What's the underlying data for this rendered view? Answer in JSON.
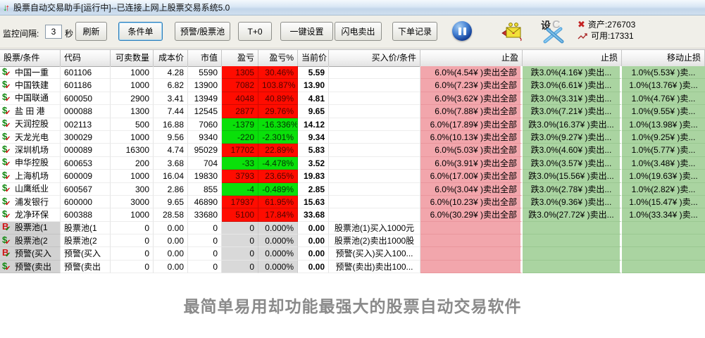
{
  "window": {
    "title": "股票自动交易助手[运行中]--已连接上网上股票交易系统5.0",
    "slogan": "最简单易用却功能最强大的股票自动交易软件"
  },
  "toolbar": {
    "interval_label": "监控间隔:",
    "interval_value": "3",
    "interval_unit": "秒",
    "buttons": [
      "刷新",
      "条件单",
      "预警/股票池",
      "T+0",
      "一键设置",
      "闪电卖出",
      "下单记录"
    ],
    "asset": "资产:276703",
    "available": "可用:17331"
  },
  "table": {
    "headers": [
      "股票/条件",
      "代码",
      "可卖数量",
      "成本价",
      "市值",
      "盈亏",
      "盈亏%",
      "当前价",
      "买入价/条件",
      "止盈",
      "止损",
      "移动止损"
    ],
    "rows": [
      {
        "icon": "sell",
        "name": "中国一重",
        "code": "601106",
        "qty": "1000",
        "cost": "4.28",
        "mktval": "5590",
        "pnl": "1305",
        "pnlpct": "30.46%",
        "price": "5.59",
        "buycond": "",
        "takeprofit": "6.0%(4.54¥ )卖出全部",
        "stoploss": "跌3.0%(4.16¥ )卖出...",
        "trailing": "1.0%(5.53¥ )卖...",
        "trend": "up",
        "special": false
      },
      {
        "icon": "sell",
        "name": "中国铁建",
        "code": "601186",
        "qty": "1000",
        "cost": "6.82",
        "mktval": "13900",
        "pnl": "7082",
        "pnlpct": "103.87%",
        "price": "13.90",
        "buycond": "",
        "takeprofit": "6.0%(7.23¥ )卖出全部",
        "stoploss": "跌3.0%(6.61¥ )卖出...",
        "trailing": "1.0%(13.76¥ )卖...",
        "trend": "up",
        "special": false
      },
      {
        "icon": "sell",
        "name": "中国联通",
        "code": "600050",
        "qty": "2900",
        "cost": "3.41",
        "mktval": "13949",
        "pnl": "4048",
        "pnlpct": "40.89%",
        "price": "4.81",
        "buycond": "",
        "takeprofit": "6.0%(3.62¥ )卖出全部",
        "stoploss": "跌3.0%(3.31¥ )卖出...",
        "trailing": "1.0%(4.76¥ )卖...",
        "trend": "up",
        "special": false
      },
      {
        "icon": "sell",
        "name": "盐 田 港",
        "code": "000088",
        "qty": "1300",
        "cost": "7.44",
        "mktval": "12545",
        "pnl": "2877",
        "pnlpct": "29.76%",
        "price": "9.65",
        "buycond": "",
        "takeprofit": "6.0%(7.88¥ )卖出全部",
        "stoploss": "跌3.0%(7.21¥ )卖出...",
        "trailing": "1.0%(9.55¥ )卖...",
        "trend": "up",
        "special": false
      },
      {
        "icon": "sell",
        "name": "天润控股",
        "code": "002113",
        "qty": "500",
        "cost": "16.88",
        "mktval": "7060",
        "pnl": "-1379",
        "pnlpct": "-16.336%",
        "price": "14.12",
        "buycond": "",
        "takeprofit": "6.0%(17.89¥ )卖出全部",
        "stoploss": "跌3.0%(16.37¥ )卖出...",
        "trailing": "1.0%(13.98¥ )卖...",
        "trend": "down",
        "special": false
      },
      {
        "icon": "sell",
        "name": "天龙光电",
        "code": "300029",
        "qty": "1000",
        "cost": "9.56",
        "mktval": "9340",
        "pnl": "-220",
        "pnlpct": "-2.301%",
        "price": "9.34",
        "buycond": "",
        "takeprofit": "6.0%(10.13¥ )卖出全部",
        "stoploss": "跌3.0%(9.27¥ )卖出...",
        "trailing": "1.0%(9.25¥ )卖...",
        "trend": "down",
        "special": false
      },
      {
        "icon": "sell",
        "name": "深圳机场",
        "code": "000089",
        "qty": "16300",
        "cost": "4.74",
        "mktval": "95029",
        "pnl": "17702",
        "pnlpct": "22.89%",
        "price": "5.83",
        "buycond": "",
        "takeprofit": "6.0%(5.03¥ )卖出全部",
        "stoploss": "跌3.0%(4.60¥ )卖出...",
        "trailing": "1.0%(5.77¥ )卖...",
        "trend": "up",
        "special": false
      },
      {
        "icon": "sell",
        "name": "申华控股",
        "code": "600653",
        "qty": "200",
        "cost": "3.68",
        "mktval": "704",
        "pnl": "-33",
        "pnlpct": "-4.478%",
        "price": "3.52",
        "buycond": "",
        "takeprofit": "6.0%(3.91¥ )卖出全部",
        "stoploss": "跌3.0%(3.57¥ )卖出...",
        "trailing": "1.0%(3.48¥ )卖...",
        "trend": "down",
        "special": false
      },
      {
        "icon": "sell",
        "name": "上海机场",
        "code": "600009",
        "qty": "1000",
        "cost": "16.04",
        "mktval": "19830",
        "pnl": "3793",
        "pnlpct": "23.65%",
        "price": "19.83",
        "buycond": "",
        "takeprofit": "6.0%(17.00¥ )卖出全部",
        "stoploss": "跌3.0%(15.56¥ )卖出...",
        "trailing": "1.0%(19.63¥ )卖...",
        "trend": "up",
        "special": false
      },
      {
        "icon": "sell",
        "name": "山鹰纸业",
        "code": "600567",
        "qty": "300",
        "cost": "2.86",
        "mktval": "855",
        "pnl": "-4",
        "pnlpct": "-0.489%",
        "price": "2.85",
        "buycond": "",
        "takeprofit": "6.0%(3.04¥ )卖出全部",
        "stoploss": "跌3.0%(2.78¥ )卖出...",
        "trailing": "1.0%(2.82¥ )卖...",
        "trend": "down",
        "special": false
      },
      {
        "icon": "sell",
        "name": "浦发银行",
        "code": "600000",
        "qty": "3000",
        "cost": "9.65",
        "mktval": "46890",
        "pnl": "17937",
        "pnlpct": "61.95%",
        "price": "15.63",
        "buycond": "",
        "takeprofit": "6.0%(10.23¥ )卖出全部",
        "stoploss": "跌3.0%(9.36¥ )卖出...",
        "trailing": "1.0%(15.47¥ )卖...",
        "trend": "up",
        "special": false
      },
      {
        "icon": "sell",
        "name": "龙净环保",
        "code": "600388",
        "qty": "1000",
        "cost": "28.58",
        "mktval": "33680",
        "pnl": "5100",
        "pnlpct": "17.84%",
        "price": "33.68",
        "buycond": "",
        "takeprofit": "6.0%(30.29¥ )卖出全部",
        "stoploss": "跌3.0%(27.72¥ )卖出...",
        "trailing": "1.0%(33.34¥ )卖...",
        "trend": "up",
        "special": false
      },
      {
        "icon": "buy",
        "name": "股票池(1",
        "code": "股票池(1",
        "qty": "0",
        "cost": "0.00",
        "mktval": "0",
        "pnl": "0",
        "pnlpct": "0.000%",
        "price": "0.00",
        "buycond": "股票池(1)买入1000元",
        "takeprofit": "",
        "stoploss": "",
        "trailing": "",
        "trend": "flat",
        "special": true
      },
      {
        "icon": "sell",
        "name": "股票池(2",
        "code": "股票池(2",
        "qty": "0",
        "cost": "0.00",
        "mktval": "0",
        "pnl": "0",
        "pnlpct": "0.000%",
        "price": "0.00",
        "buycond": "股票池(2)卖出1000股",
        "takeprofit": "",
        "stoploss": "",
        "trailing": "",
        "trend": "flat",
        "special": true
      },
      {
        "icon": "buy",
        "name": "预警(买入",
        "code": "预警(买入",
        "qty": "0",
        "cost": "0.00",
        "mktval": "0",
        "pnl": "0",
        "pnlpct": "0.000%",
        "price": "0.00",
        "buycond": "预警(买入)买入100...",
        "takeprofit": "",
        "stoploss": "",
        "trailing": "",
        "trend": "flat",
        "special": true
      },
      {
        "icon": "sell",
        "name": "预警(卖出",
        "code": "预警(卖出",
        "qty": "0",
        "cost": "0.00",
        "mktval": "0",
        "pnl": "0",
        "pnlpct": "0.000%",
        "price": "0.00",
        "buycond": "预警(卖出)卖出100...",
        "takeprofit": "",
        "stoploss": "",
        "trailing": "",
        "trend": "flat",
        "special": true
      }
    ]
  }
}
